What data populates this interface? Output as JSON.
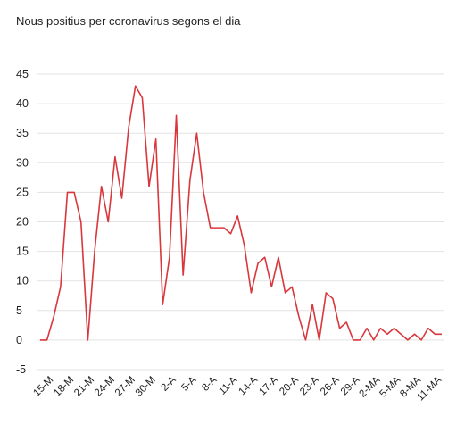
{
  "chart_data": {
    "type": "line",
    "title": "Nous positius per coronavirus segons el dia",
    "xlabel": "",
    "ylabel": "",
    "ylim": [
      -5,
      45
    ],
    "y_ticks": [
      45,
      40,
      35,
      30,
      25,
      20,
      15,
      10,
      5,
      0,
      -5
    ],
    "grid": true,
    "x_tick_labels": [
      "15-M",
      "18-M",
      "21-M",
      "24-M",
      "27-M",
      "30-M",
      "2-A",
      "5-A",
      "8-A",
      "11-A",
      "14-A",
      "17-A",
      "20-A",
      "23-A",
      "26-A",
      "29-A",
      "2-MA",
      "5-MA",
      "8-MA",
      "11-MA"
    ],
    "line_color": "#d9373c",
    "series": [
      {
        "values": [
          0,
          0,
          4,
          9,
          25,
          25,
          20,
          0,
          15,
          26,
          20,
          31,
          24,
          36,
          43,
          41,
          26,
          34,
          6,
          14,
          38,
          11,
          27,
          35,
          25,
          19,
          19,
          19,
          18,
          21,
          16,
          8,
          13,
          14,
          9,
          14,
          8,
          9,
          4,
          0,
          6,
          0,
          8,
          7,
          2,
          3,
          0,
          0,
          2,
          0,
          2,
          1,
          2,
          1,
          0,
          1,
          0,
          2,
          1,
          1
        ]
      }
    ]
  }
}
